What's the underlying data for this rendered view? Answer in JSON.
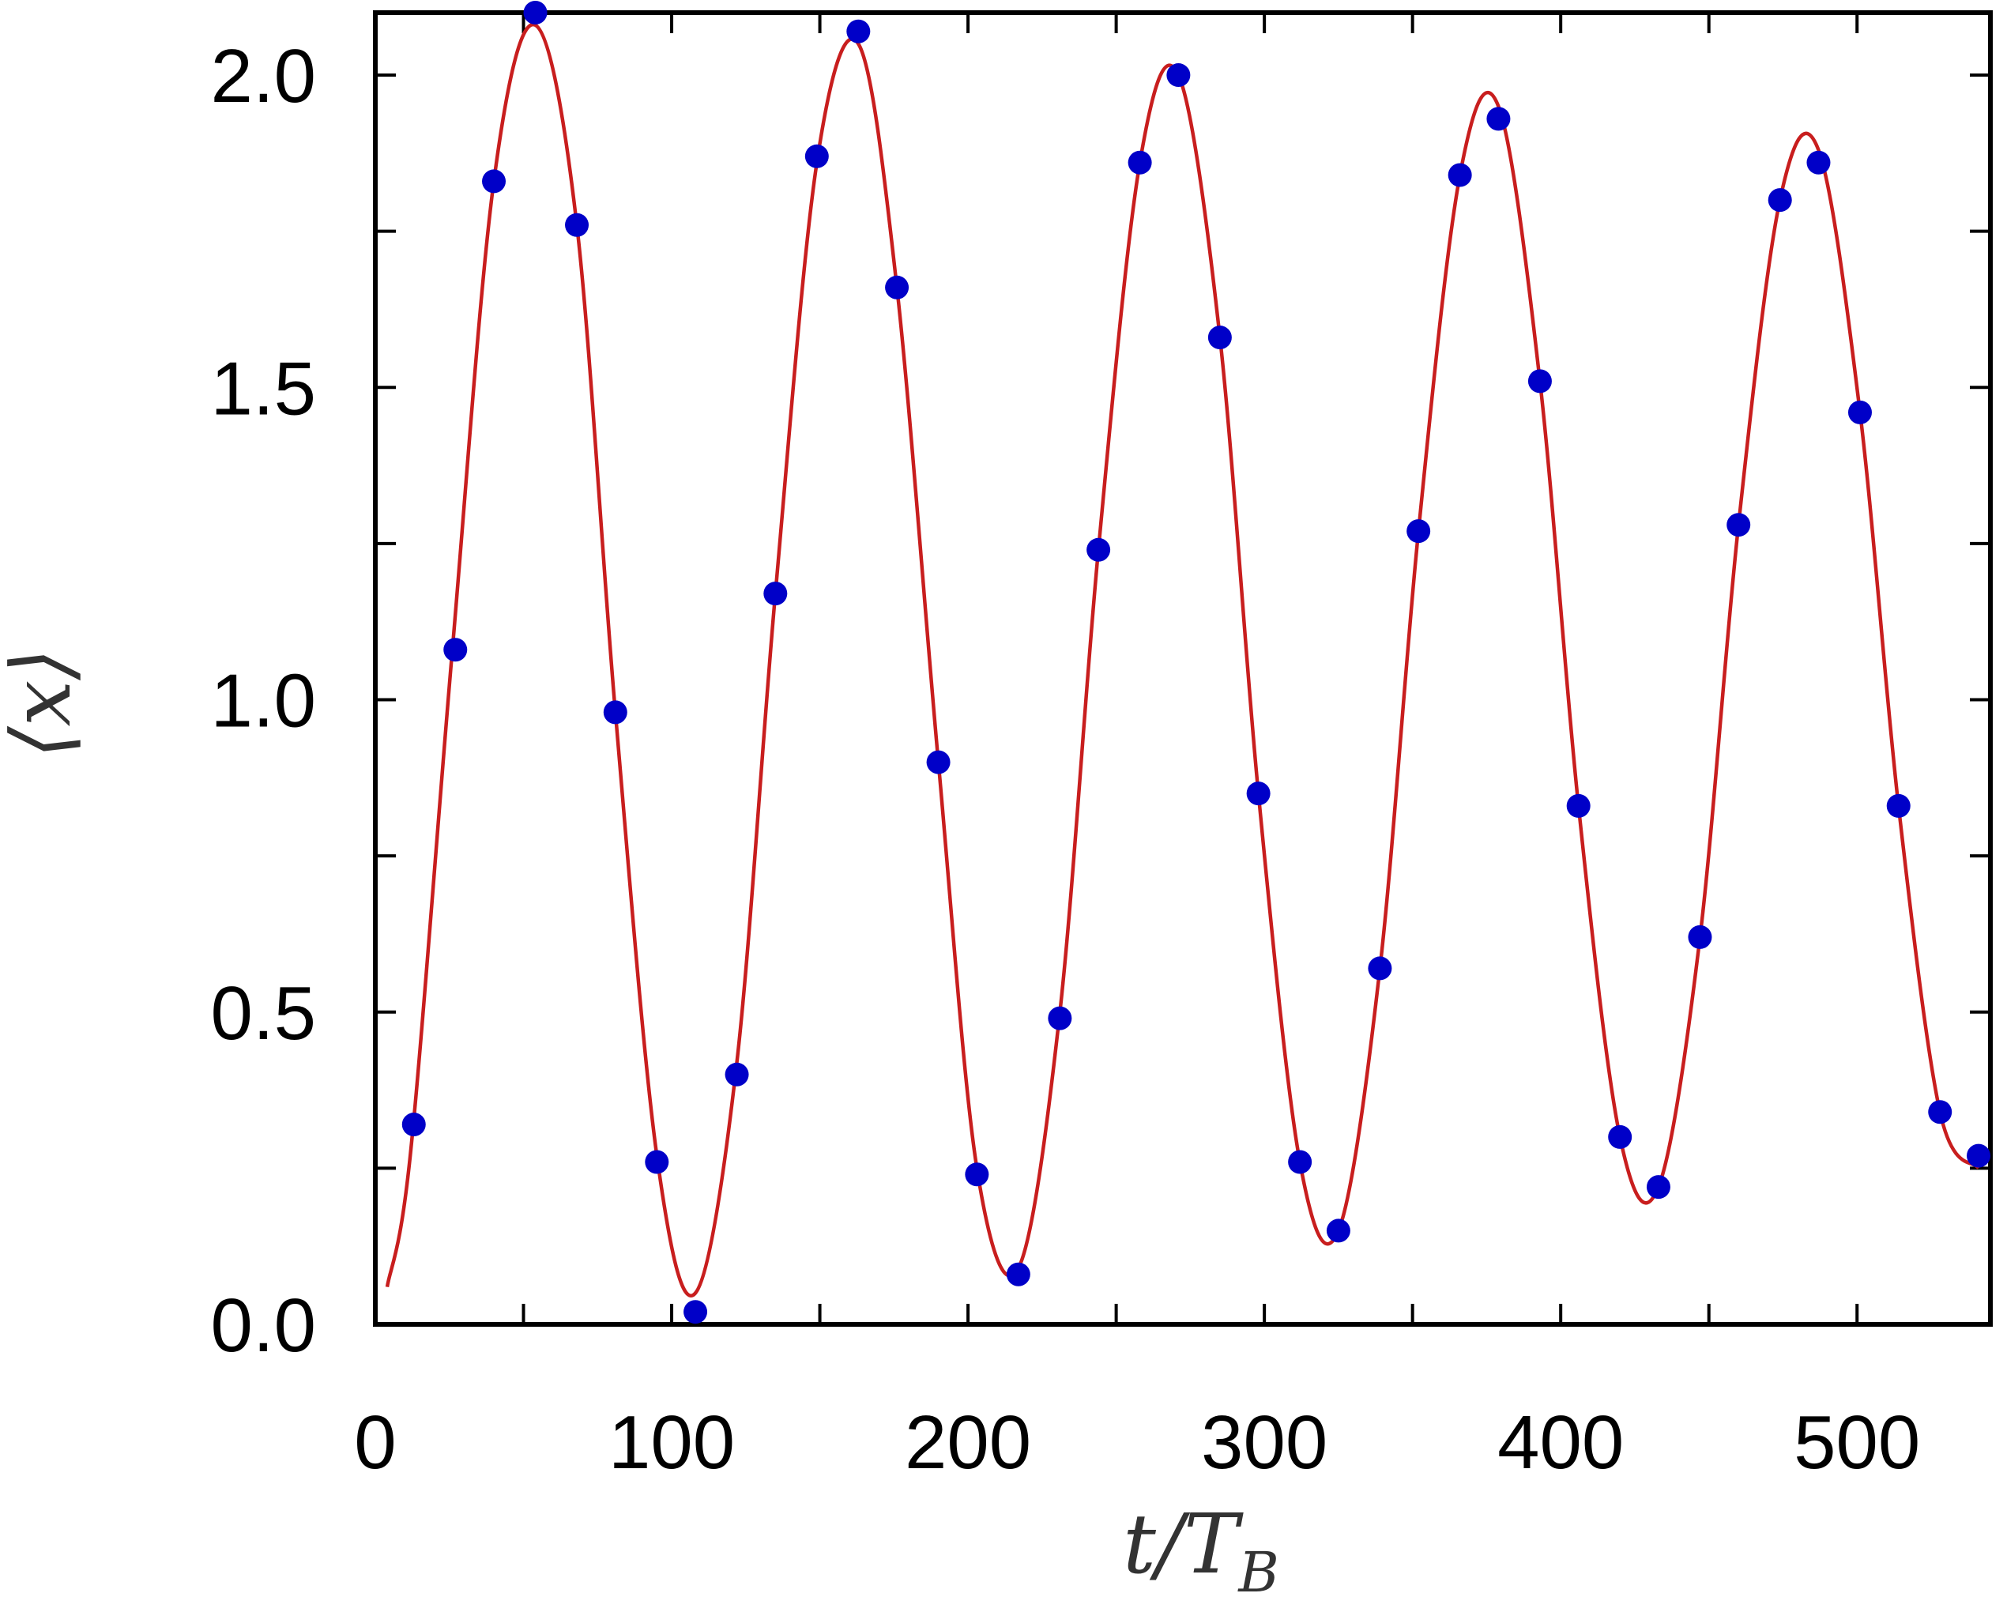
{
  "chart_data": {
    "type": "scatter",
    "xlabel": {
      "main": "t/T",
      "sub": "B"
    },
    "ylabel": "⟨x⟩",
    "xlim": [
      0,
      545
    ],
    "ylim": [
      0,
      2.1
    ],
    "x_ticks": [
      0,
      100,
      200,
      300,
      400,
      500
    ],
    "x_tick_labels": [
      "0",
      "100",
      "200",
      "300",
      "400",
      "500"
    ],
    "y_ticks": [
      0,
      0.5,
      1.0,
      1.5,
      2.0
    ],
    "y_tick_labels": [
      "0.0",
      "0.5",
      "1.0",
      "1.5",
      "2.0"
    ],
    "grid": false,
    "legend": "none",
    "colors": {
      "points": "#0000c8",
      "curve": "#c81e1e",
      "axes": "#000000"
    },
    "series": [
      {
        "kind": "points",
        "x": [
          13,
          27,
          40,
          54,
          68,
          81,
          95,
          108,
          122,
          135,
          149,
          163,
          176,
          190,
          203,
          217,
          231,
          244,
          258,
          271,
          285,
          298,
          312,
          325,
          339,
          352,
          366,
          379,
          393,
          406,
          420,
          433,
          447,
          460,
          474,
          487,
          501,
          514,
          528,
          541
        ],
        "y": [
          0.32,
          1.08,
          1.83,
          2.1,
          1.76,
          0.98,
          0.26,
          0.02,
          0.4,
          1.17,
          1.87,
          2.07,
          1.66,
          0.9,
          0.24,
          0.08,
          0.49,
          1.24,
          1.86,
          2.0,
          1.58,
          0.85,
          0.26,
          0.15,
          0.57,
          1.27,
          1.84,
          1.93,
          1.51,
          0.83,
          0.3,
          0.22,
          0.62,
          1.28,
          1.8,
          1.86,
          1.46,
          0.83,
          0.34,
          0.27
        ]
      },
      {
        "kind": "line",
        "x": [
          4,
          12,
          26,
          40,
          54,
          68,
          81,
          95,
          108,
          122,
          135,
          149,
          163,
          176,
          190,
          203,
          217,
          231,
          244,
          258,
          271,
          285,
          298,
          312,
          325,
          339,
          352,
          366,
          379,
          393,
          406,
          420,
          433,
          447,
          460,
          474,
          487,
          501,
          514,
          528,
          541
        ],
        "y": [
          0.06,
          0.28,
          1.08,
          1.83,
          2.08,
          1.76,
          0.98,
          0.27,
          0.05,
          0.42,
          1.17,
          1.86,
          2.05,
          1.66,
          0.9,
          0.25,
          0.09,
          0.5,
          1.24,
          1.86,
          2.0,
          1.58,
          0.85,
          0.26,
          0.15,
          0.57,
          1.27,
          1.84,
          1.95,
          1.51,
          0.83,
          0.3,
          0.22,
          0.62,
          1.28,
          1.8,
          1.88,
          1.46,
          0.83,
          0.34,
          0.25
        ]
      }
    ]
  }
}
